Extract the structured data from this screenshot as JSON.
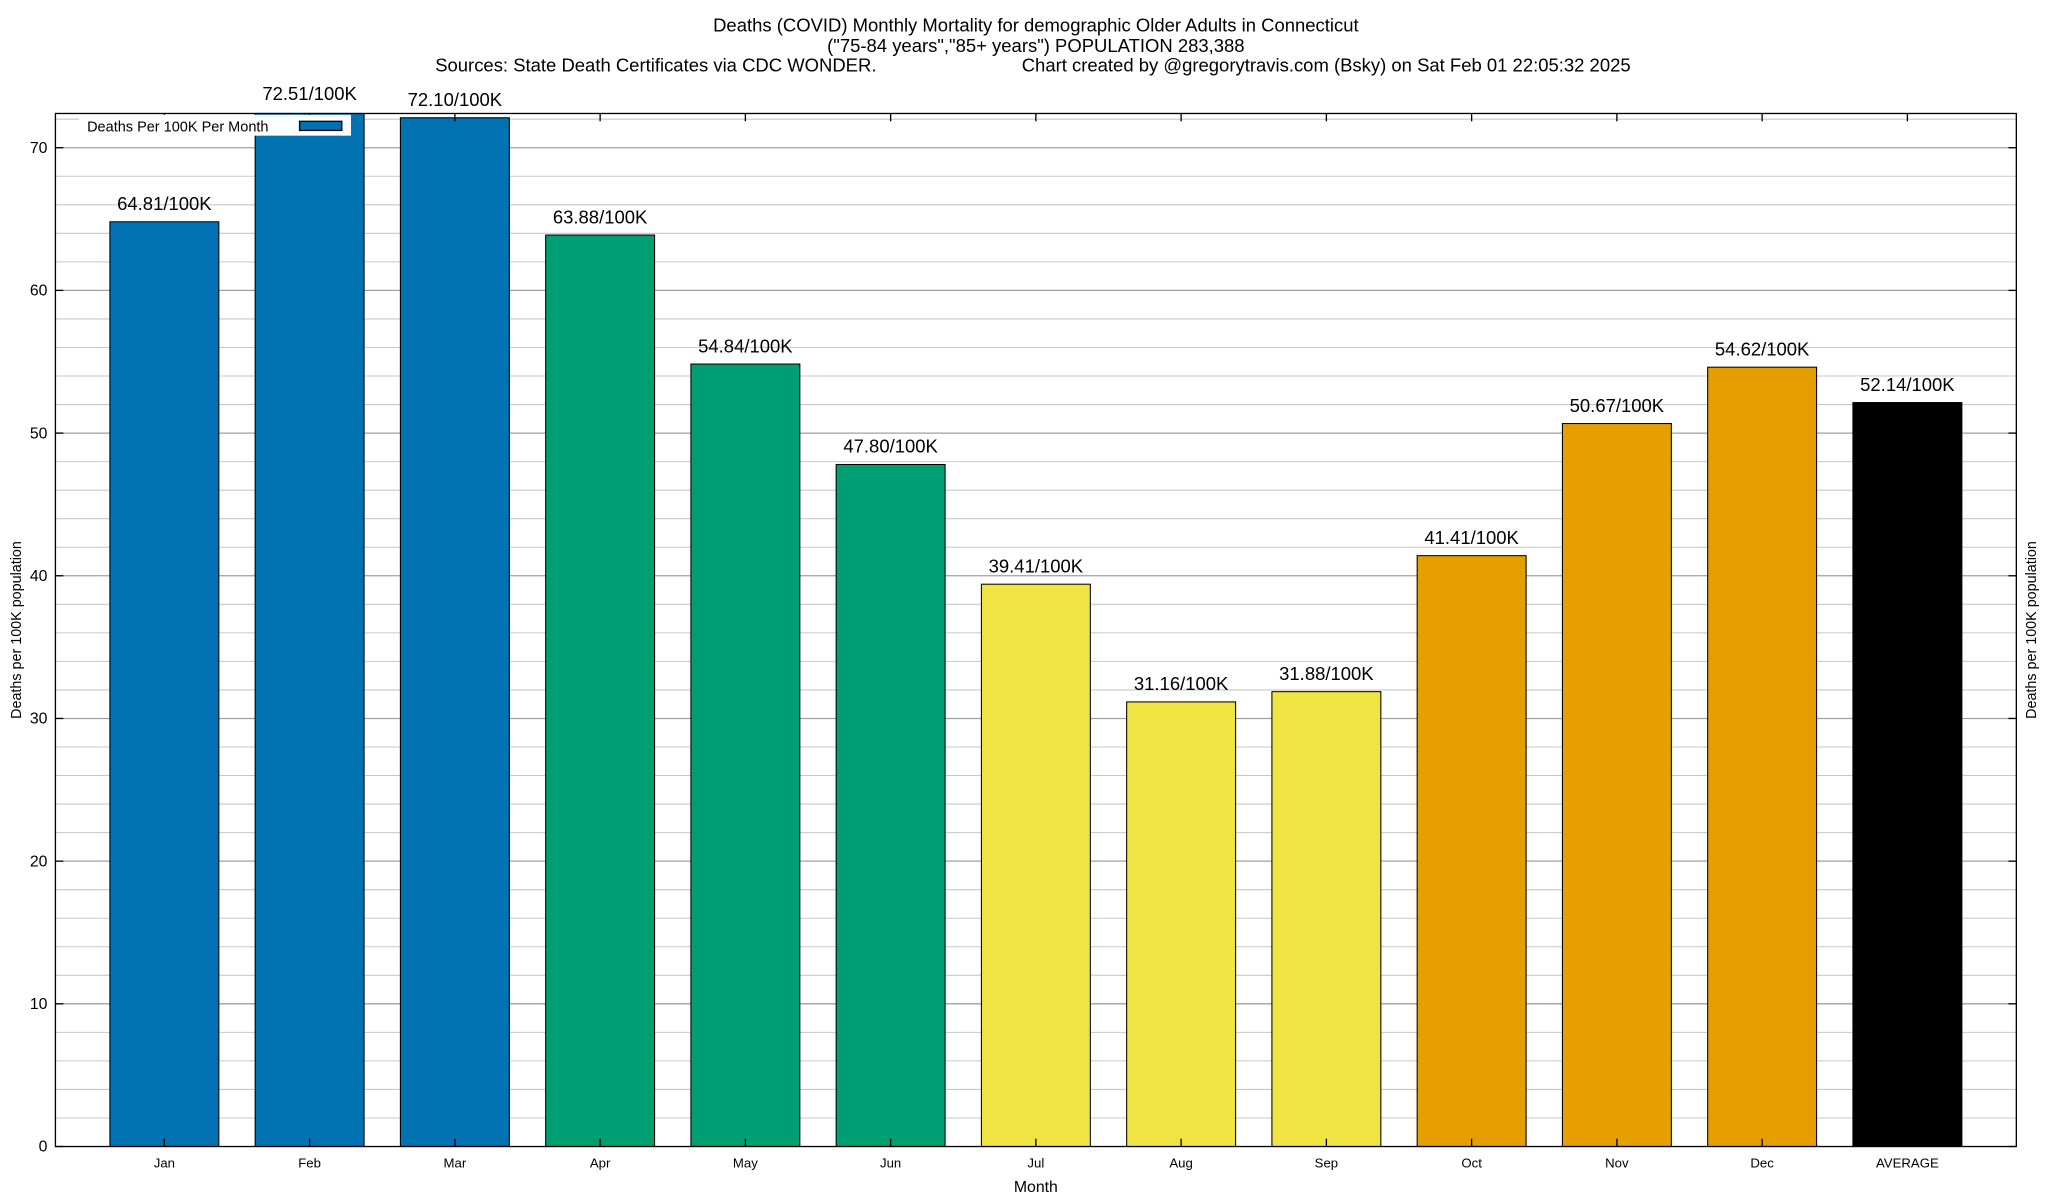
{
  "chart_data": {
    "type": "bar",
    "title_lines": [
      "Deaths (COVID) Monthly Mortality for demographic Older Adults in Connecticut",
      "(\"75-84 years\",\"85+ years\") POPULATION 283,388"
    ],
    "sources": "Sources: State Death Certificates via CDC WONDER.",
    "credit": "Chart created by @gregorytravis.com (Bsky) on Sat Feb 01 22:05:32 2025",
    "xlabel": "Month",
    "ylabel": "Deaths per 100K population",
    "y2label": "Deaths per 100K population",
    "ylim": [
      0,
      72.4
    ],
    "yticks": [
      0,
      10,
      20,
      30,
      40,
      50,
      60,
      70
    ],
    "grid": true,
    "legend": {
      "label": "Deaths Per 100K Per Month",
      "placement": "top-left",
      "color": "#0072b2"
    },
    "categories": [
      "Jan",
      "Feb",
      "Mar",
      "Apr",
      "May",
      "Jun",
      "Jul",
      "Aug",
      "Sep",
      "Oct",
      "Nov",
      "Dec",
      "AVERAGE"
    ],
    "values": [
      64.81,
      72.51,
      72.1,
      63.88,
      54.84,
      47.8,
      39.41,
      31.16,
      31.88,
      41.41,
      50.67,
      54.62,
      52.14
    ],
    "data_labels": [
      "64.81/100K",
      "72.51/100K",
      "72.10/100K",
      "63.88/100K",
      "54.84/100K",
      "47.80/100K",
      "39.41/100K",
      "31.16/100K",
      "31.88/100K",
      "41.41/100K",
      "50.67/100K",
      "54.62/100K",
      "52.14/100K"
    ],
    "colors": [
      "#0072b2",
      "#0072b2",
      "#0072b2",
      "#009e73",
      "#009e73",
      "#009e73",
      "#f0e442",
      "#f0e442",
      "#f0e442",
      "#e69f00",
      "#e69f00",
      "#e69f00",
      "#000000"
    ]
  }
}
